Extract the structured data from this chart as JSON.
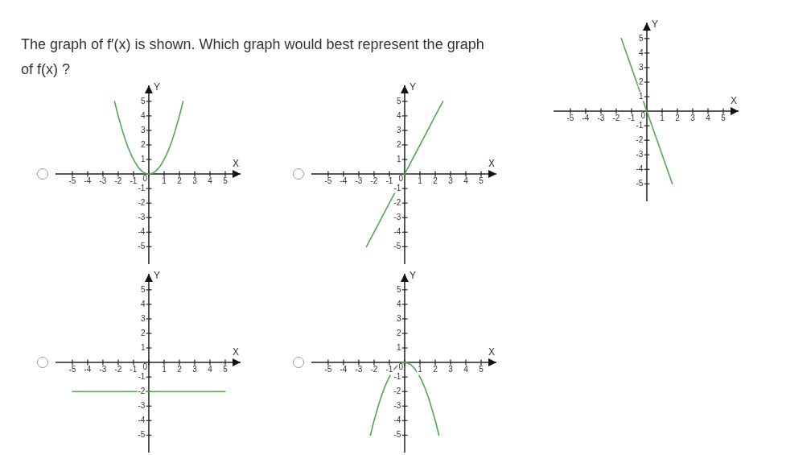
{
  "chart_data": [
    {
      "type": "line",
      "title": "The graph of f′(x) is shown. Which graph would best represent the graph of f(x) ?",
      "xlabel": "X",
      "ylabel": "Y",
      "x": [
        -1.67,
        1.67
      ],
      "values": [
        5,
        -5
      ],
      "color": "#52a852",
      "xlim": [
        -6.1,
        6
      ],
      "ylim": [
        -6.2,
        6.1
      ],
      "xticks": [
        -5,
        -4,
        -3,
        -2,
        -1,
        0,
        1,
        2,
        3,
        4,
        5
      ],
      "yticks": [
        -5,
        -4,
        -3,
        -2,
        -1,
        1,
        2,
        3,
        4,
        5
      ],
      "marker": "none"
    },
    {
      "type": "line",
      "xlabel": "X",
      "ylabel": "Y",
      "x": [
        -2.24,
        -2,
        -1.5,
        -1,
        -0.5,
        0,
        0.5,
        1,
        1.5,
        2,
        2.24
      ],
      "values": [
        5,
        4,
        2.25,
        1,
        0.25,
        0,
        0.25,
        1,
        2.25,
        4,
        5
      ],
      "color": "#52a852",
      "xlim": [
        -6.1,
        6
      ],
      "ylim": [
        -6.2,
        6.1
      ],
      "xticks": [
        -5,
        -4,
        -3,
        -2,
        -1,
        0,
        1,
        2,
        3,
        4,
        5
      ],
      "yticks": [
        -5,
        -4,
        -3,
        -2,
        -1,
        1,
        2,
        3,
        4,
        5
      ],
      "marker": "none"
    },
    {
      "type": "line",
      "xlabel": "X",
      "ylabel": "Y",
      "x": [
        -2.5,
        2.5
      ],
      "values": [
        -5,
        5
      ],
      "color": "#52a852",
      "xlim": [
        -6.1,
        6
      ],
      "ylim": [
        -6.2,
        6.1
      ],
      "xticks": [
        -5,
        -4,
        -3,
        -2,
        -1,
        0,
        1,
        2,
        3,
        4,
        5
      ],
      "yticks": [
        -5,
        -4,
        -3,
        -2,
        -1,
        1,
        2,
        3,
        4,
        5
      ],
      "marker": "none"
    },
    {
      "type": "line",
      "xlabel": "X",
      "ylabel": "Y",
      "x": [
        -5,
        5
      ],
      "values": [
        -2,
        -2
      ],
      "color": "#52a852",
      "xlim": [
        -6.1,
        6
      ],
      "ylim": [
        -6.2,
        6.1
      ],
      "xticks": [
        -5,
        -4,
        -3,
        -2,
        -1,
        0,
        1,
        2,
        3,
        4,
        5
      ],
      "yticks": [
        -5,
        -4,
        -3,
        -2,
        -1,
        1,
        2,
        3,
        4,
        5
      ],
      "marker": "none"
    },
    {
      "type": "line",
      "xlabel": "X",
      "ylabel": "Y",
      "x": [
        -2.24,
        -2,
        -1.5,
        -1,
        -0.5,
        0,
        0.5,
        1,
        1.5,
        2,
        2.24
      ],
      "values": [
        -5,
        -4,
        -2.25,
        -1,
        -0.25,
        0,
        -0.25,
        -1,
        -2.25,
        -4,
        -5
      ],
      "color": "#52a852",
      "xlim": [
        -6.1,
        6
      ],
      "ylim": [
        -6.2,
        6.1
      ],
      "xticks": [
        -5,
        -4,
        -3,
        -2,
        -1,
        0,
        1,
        2,
        3,
        4,
        5
      ],
      "yticks": [
        -5,
        -4,
        -3,
        -2,
        -1,
        1,
        2,
        3,
        4,
        5
      ],
      "marker": "none"
    }
  ]
}
